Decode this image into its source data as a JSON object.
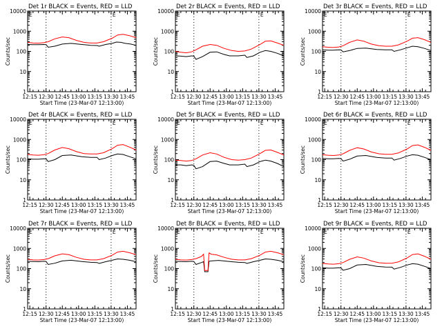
{
  "figure": {
    "x_tick_labels": [
      "12:15",
      "12:30",
      "12:45",
      "13:00",
      "13:15",
      "13:30",
      "13:45"
    ],
    "y_tick_labels": [
      "1",
      "10",
      "100",
      "1000",
      "10000"
    ],
    "x_axis_label": "Start Time (23-Mar-07 12:13:00)",
    "y_axis_label": "Counts/sec",
    "panel_marker": "E",
    "colors": {
      "events": "#000000",
      "lld": "#ff0000",
      "axes": "#000000"
    }
  },
  "chart_data": [
    {
      "type": "line",
      "title": "Det 1r BLACK = Events, RED = LLD",
      "xlabel": "Start Time (23-Mar-07 12:13:00)",
      "ylabel": "Counts/sec",
      "x_unit": "minutes after 12:13:00",
      "xlim": [
        0,
        100
      ],
      "ylim": [
        1,
        10000
      ],
      "yscale": "log",
      "x_ticks": [
        2,
        17,
        32,
        47,
        62,
        77,
        92
      ],
      "vlines": [
        17,
        77
      ],
      "series": [
        {
          "name": "Events",
          "color": "#000000",
          "x": [
            0,
            5,
            10,
            15,
            17,
            19,
            25,
            32,
            40,
            50,
            58,
            64,
            66,
            72,
            78,
            82,
            86,
            90,
            95,
            100
          ],
          "y": [
            220,
            215,
            215,
            220,
            215,
            160,
            180,
            230,
            250,
            220,
            200,
            195,
            180,
            220,
            250,
            290,
            280,
            250,
            230,
            200
          ]
        },
        {
          "name": "LLD",
          "color": "#ff0000",
          "x": [
            0,
            5,
            10,
            15,
            19,
            25,
            32,
            38,
            45,
            52,
            58,
            64,
            70,
            78,
            83,
            88,
            94,
            100
          ],
          "y": [
            280,
            260,
            255,
            270,
            300,
            420,
            520,
            480,
            350,
            280,
            260,
            260,
            300,
            450,
            650,
            700,
            600,
            480
          ]
        }
      ]
    },
    {
      "type": "line",
      "title": "Det 2r BLACK = Events, RED = LLD",
      "xlabel": "Start Time (23-Mar-07 12:13:00)",
      "ylabel": "Counts/sec",
      "x_unit": "minutes after 12:13:00",
      "xlim": [
        0,
        100
      ],
      "ylim": [
        1,
        10000
      ],
      "yscale": "log",
      "x_ticks": [
        2,
        17,
        32,
        47,
        62,
        77,
        92
      ],
      "vlines": [
        17,
        77
      ],
      "series": [
        {
          "name": "Events",
          "color": "#000000",
          "x": [
            0,
            5,
            10,
            15,
            17,
            19,
            25,
            32,
            38,
            45,
            50,
            58,
            64,
            66,
            72,
            78,
            83,
            88,
            94,
            100
          ],
          "y": [
            60,
            58,
            55,
            60,
            58,
            40,
            55,
            90,
            95,
            70,
            60,
            60,
            65,
            50,
            60,
            90,
            110,
            100,
            80,
            60
          ]
        },
        {
          "name": "LLD",
          "color": "#ff0000",
          "x": [
            0,
            5,
            10,
            15,
            19,
            25,
            32,
            38,
            45,
            52,
            58,
            64,
            70,
            78,
            83,
            88,
            94,
            100
          ],
          "y": [
            100,
            90,
            85,
            95,
            120,
            180,
            220,
            200,
            140,
            110,
            100,
            105,
            130,
            220,
            320,
            330,
            260,
            200
          ]
        }
      ]
    },
    {
      "type": "line",
      "title": "Det 3r BLACK = Events, RED = LLD",
      "xlabel": "Start Time (23-Mar-07 12:13:00)",
      "ylabel": "Counts/sec",
      "x_unit": "minutes after 12:13:00",
      "xlim": [
        0,
        100
      ],
      "ylim": [
        1,
        10000
      ],
      "yscale": "log",
      "x_ticks": [
        2,
        17,
        32,
        47,
        62,
        77,
        92
      ],
      "vlines": [
        17,
        77
      ],
      "series": [
        {
          "name": "Events",
          "color": "#000000",
          "x": [
            0,
            5,
            10,
            15,
            17,
            19,
            25,
            32,
            40,
            50,
            58,
            64,
            66,
            72,
            78,
            83,
            88,
            94,
            100
          ],
          "y": [
            120,
            115,
            115,
            120,
            118,
            95,
            110,
            140,
            145,
            125,
            120,
            120,
            100,
            120,
            150,
            180,
            170,
            140,
            110
          ]
        },
        {
          "name": "LLD",
          "color": "#ff0000",
          "x": [
            0,
            5,
            10,
            15,
            19,
            25,
            32,
            38,
            45,
            52,
            58,
            64,
            70,
            78,
            83,
            88,
            94,
            100
          ],
          "y": [
            170,
            160,
            155,
            165,
            190,
            280,
            370,
            320,
            230,
            190,
            180,
            180,
            210,
            320,
            450,
            480,
            380,
            280
          ]
        }
      ]
    },
    {
      "type": "line",
      "title": "Det 4r BLACK = Events, RED = LLD",
      "xlabel": "Start Time (23-Mar-07 12:13:00)",
      "ylabel": "Counts/sec",
      "x_unit": "minutes after 12:13:00",
      "xlim": [
        0,
        100
      ],
      "ylim": [
        1,
        10000
      ],
      "yscale": "log",
      "x_ticks": [
        2,
        17,
        32,
        47,
        62,
        77,
        92
      ],
      "vlines": [
        17,
        77
      ],
      "series": [
        {
          "name": "Events",
          "color": "#000000",
          "x": [
            0,
            5,
            10,
            15,
            17,
            19,
            25,
            32,
            40,
            50,
            58,
            64,
            66,
            72,
            78,
            83,
            88,
            94,
            100
          ],
          "y": [
            110,
            105,
            105,
            110,
            108,
            80,
            100,
            160,
            170,
            140,
            130,
            130,
            100,
            120,
            160,
            190,
            180,
            140,
            110
          ]
        },
        {
          "name": "LLD",
          "color": "#ff0000",
          "x": [
            0,
            5,
            10,
            15,
            19,
            25,
            32,
            38,
            45,
            52,
            58,
            64,
            70,
            78,
            83,
            88,
            94,
            100
          ],
          "y": [
            180,
            170,
            165,
            175,
            200,
            300,
            400,
            350,
            250,
            200,
            190,
            190,
            220,
            350,
            520,
            560,
            420,
            300
          ]
        }
      ]
    },
    {
      "type": "line",
      "title": "Det 5r BLACK = Events, RED = LLD",
      "xlabel": "Start Time (23-Mar-07 12:13:00)",
      "ylabel": "Counts/sec",
      "x_unit": "minutes after 12:13:00",
      "xlim": [
        0,
        100
      ],
      "ylim": [
        1,
        10000
      ],
      "yscale": "log",
      "x_ticks": [
        2,
        17,
        32,
        47,
        62,
        77,
        92
      ],
      "vlines": [
        17,
        77
      ],
      "series": [
        {
          "name": "Events",
          "color": "#000000",
          "x": [
            0,
            5,
            10,
            15,
            17,
            19,
            25,
            32,
            38,
            45,
            50,
            58,
            64,
            66,
            72,
            78,
            83,
            88,
            94,
            100
          ],
          "y": [
            55,
            55,
            50,
            55,
            52,
            35,
            45,
            80,
            85,
            65,
            55,
            55,
            60,
            45,
            55,
            80,
            95,
            85,
            65,
            45
          ]
        },
        {
          "name": "LLD",
          "color": "#ff0000",
          "x": [
            0,
            5,
            10,
            15,
            19,
            25,
            32,
            38,
            45,
            52,
            58,
            64,
            70,
            78,
            83,
            88,
            94,
            100
          ],
          "y": [
            95,
            90,
            85,
            90,
            110,
            170,
            220,
            190,
            130,
            100,
            95,
            100,
            120,
            200,
            290,
            300,
            230,
            170
          ]
        }
      ]
    },
    {
      "type": "line",
      "title": "Det 6r BLACK = Events, RED = LLD",
      "xlabel": "Start Time (23-Mar-07 12:13:00)",
      "ylabel": "Counts/sec",
      "x_unit": "minutes after 12:13:00",
      "xlim": [
        0,
        100
      ],
      "ylim": [
        1,
        10000
      ],
      "yscale": "log",
      "x_ticks": [
        2,
        17,
        32,
        47,
        62,
        77,
        92
      ],
      "vlines": [
        17,
        77
      ],
      "series": [
        {
          "name": "Events",
          "color": "#000000",
          "x": [
            0,
            5,
            10,
            15,
            17,
            19,
            25,
            32,
            40,
            50,
            58,
            64,
            66,
            72,
            78,
            83,
            88,
            94,
            100
          ],
          "y": [
            115,
            110,
            110,
            115,
            112,
            85,
            105,
            150,
            160,
            130,
            120,
            120,
            95,
            115,
            150,
            175,
            165,
            130,
            100
          ]
        },
        {
          "name": "LLD",
          "color": "#ff0000",
          "x": [
            0,
            5,
            10,
            15,
            19,
            25,
            32,
            38,
            45,
            52,
            58,
            64,
            70,
            78,
            83,
            88,
            94,
            100
          ],
          "y": [
            175,
            165,
            160,
            170,
            195,
            290,
            390,
            340,
            240,
            195,
            185,
            185,
            215,
            340,
            500,
            540,
            410,
            290
          ]
        }
      ]
    },
    {
      "type": "line",
      "title": "Det 7r BLACK = Events, RED = LLD",
      "xlabel": "Start Time (23-Mar-07 12:13:00)",
      "ylabel": "Counts/sec",
      "x_unit": "minutes after 12:13:00",
      "xlim": [
        0,
        100
      ],
      "ylim": [
        1,
        10000
      ],
      "yscale": "log",
      "x_ticks": [
        2,
        17,
        32,
        47,
        62,
        77,
        92
      ],
      "vlines": [
        17,
        77
      ],
      "series": [
        {
          "name": "Events",
          "color": "#000000",
          "x": [
            0,
            5,
            10,
            15,
            17,
            19,
            25,
            32,
            40,
            50,
            58,
            64,
            66,
            72,
            78,
            83,
            88,
            94,
            100
          ],
          "y": [
            230,
            225,
            220,
            230,
            225,
            160,
            185,
            240,
            260,
            225,
            205,
            200,
            180,
            220,
            260,
            300,
            290,
            260,
            220
          ]
        },
        {
          "name": "LLD",
          "color": "#ff0000",
          "x": [
            0,
            5,
            10,
            15,
            19,
            25,
            32,
            38,
            45,
            52,
            58,
            64,
            70,
            78,
            83,
            88,
            94,
            100
          ],
          "y": [
            290,
            270,
            265,
            280,
            310,
            430,
            540,
            490,
            360,
            290,
            270,
            270,
            310,
            460,
            660,
            720,
            610,
            490
          ]
        }
      ]
    },
    {
      "type": "line",
      "title": "Det 8r BLACK = Events, RED = LLD",
      "xlabel": "Start Time (23-Mar-07 12:13:00)",
      "ylabel": "Counts/sec",
      "x_unit": "minutes after 12:13:00",
      "xlim": [
        0,
        100
      ],
      "ylim": [
        1,
        10000
      ],
      "yscale": "log",
      "x_ticks": [
        2,
        17,
        32,
        47,
        62,
        77,
        92
      ],
      "vlines": [
        17,
        77
      ],
      "series": [
        {
          "name": "Events",
          "color": "#000000",
          "x": [
            0,
            5,
            10,
            15,
            17,
            19,
            24,
            26,
            27,
            30,
            31,
            33,
            40,
            50,
            58,
            64,
            66,
            72,
            78,
            83,
            88,
            94,
            100
          ],
          "y": [
            230,
            225,
            220,
            230,
            225,
            160,
            200,
            220,
            70,
            70,
            230,
            240,
            255,
            225,
            205,
            200,
            180,
            220,
            260,
            300,
            290,
            260,
            220
          ]
        },
        {
          "name": "LLD",
          "color": "#ff0000",
          "x": [
            0,
            5,
            10,
            15,
            19,
            24,
            26,
            27,
            30,
            31,
            33,
            38,
            45,
            52,
            58,
            64,
            70,
            78,
            83,
            88,
            94,
            100
          ],
          "y": [
            290,
            270,
            265,
            280,
            310,
            400,
            520,
            80,
            80,
            600,
            520,
            480,
            360,
            290,
            270,
            270,
            310,
            460,
            660,
            720,
            610,
            490
          ]
        }
      ]
    },
    {
      "type": "line",
      "title": "Det 9r BLACK = Events, RED = LLD",
      "xlabel": "Start Time (23-Mar-07 12:13:00)",
      "ylabel": "Counts/sec",
      "x_unit": "minutes after 12:13:00",
      "xlim": [
        0,
        100
      ],
      "ylim": [
        1,
        10000
      ],
      "yscale": "log",
      "x_ticks": [
        2,
        17,
        32,
        47,
        62,
        77,
        92
      ],
      "vlines": [
        17,
        77
      ],
      "series": [
        {
          "name": "Events",
          "color": "#000000",
          "x": [
            0,
            5,
            10,
            15,
            17,
            19,
            25,
            32,
            40,
            50,
            58,
            64,
            66,
            72,
            78,
            83,
            88,
            94,
            100
          ],
          "y": [
            110,
            105,
            105,
            110,
            108,
            82,
            100,
            150,
            160,
            130,
            120,
            118,
            95,
            115,
            150,
            175,
            165,
            130,
            100
          ]
        },
        {
          "name": "LLD",
          "color": "#ff0000",
          "x": [
            0,
            5,
            10,
            15,
            19,
            25,
            32,
            38,
            45,
            52,
            58,
            64,
            70,
            78,
            83,
            88,
            94,
            100
          ],
          "y": [
            180,
            170,
            165,
            175,
            200,
            290,
            380,
            330,
            240,
            195,
            185,
            185,
            215,
            340,
            500,
            540,
            410,
            290
          ]
        }
      ]
    }
  ]
}
